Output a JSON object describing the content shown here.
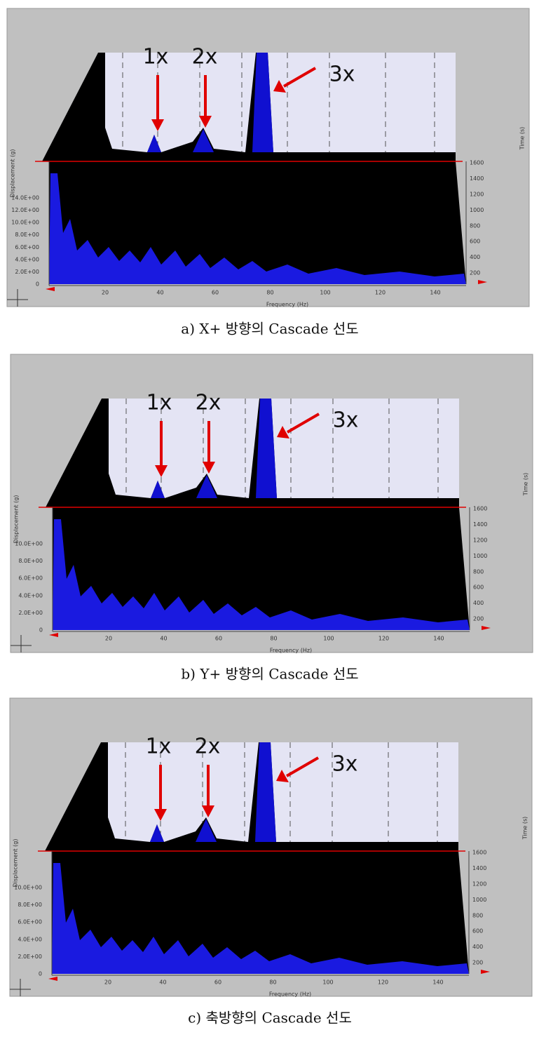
{
  "panels": [
    {
      "caption": "a) X+ 방향의 Cascade 선도",
      "annotations": [
        "1x",
        "2x",
        "3x"
      ],
      "y_axis_title": "Displacement (g)",
      "time_axis_title": "Time (s)",
      "x_axis_title": "Frequency (Hz)",
      "x_ticks": [
        "20",
        "40",
        "60",
        "80",
        "100",
        "120",
        "140"
      ],
      "y_ticks": [
        "0",
        "2.0E+00",
        "4.0E+00",
        "6.0E+00",
        "8.0E+00",
        "10.0E+00",
        "12.0E+00",
        "14.0E+00"
      ],
      "time_ticks": [
        "200",
        "400",
        "600",
        "800",
        "1000",
        "1200",
        "1400",
        "1600"
      ]
    },
    {
      "caption": "b) Y+ 방향의 Cascade 선도",
      "annotations": [
        "1x",
        "2x",
        "3x"
      ],
      "y_axis_title": "Displacement (g)",
      "time_axis_title": "Time (s)",
      "x_axis_title": "Frequency (Hz)",
      "x_ticks": [
        "20",
        "40",
        "60",
        "80",
        "100",
        "120",
        "140"
      ],
      "y_ticks": [
        "0",
        "2.0E+00",
        "4.0E+00",
        "6.0E+00",
        "8.0E+00",
        "10.0E+00"
      ],
      "time_ticks": [
        "200",
        "400",
        "600",
        "800",
        "1000",
        "1200",
        "1400",
        "1600"
      ]
    },
    {
      "caption": "c) 축방향의 Cascade 선도",
      "annotations": [
        "1x",
        "2x",
        "3x"
      ],
      "y_axis_title": "Displacement (g)",
      "time_axis_title": "Time (s)",
      "x_axis_title": "Frequency (Hz)",
      "x_ticks": [
        "20",
        "40",
        "60",
        "80",
        "100",
        "120",
        "140"
      ],
      "y_ticks": [
        "0",
        "2.0E+00",
        "4.0E+00",
        "6.0E+00",
        "8.0E+00",
        "10.0E+00"
      ],
      "time_ticks": [
        "200",
        "400",
        "600",
        "800",
        "1000",
        "1200",
        "1400",
        "1600"
      ]
    }
  ]
}
